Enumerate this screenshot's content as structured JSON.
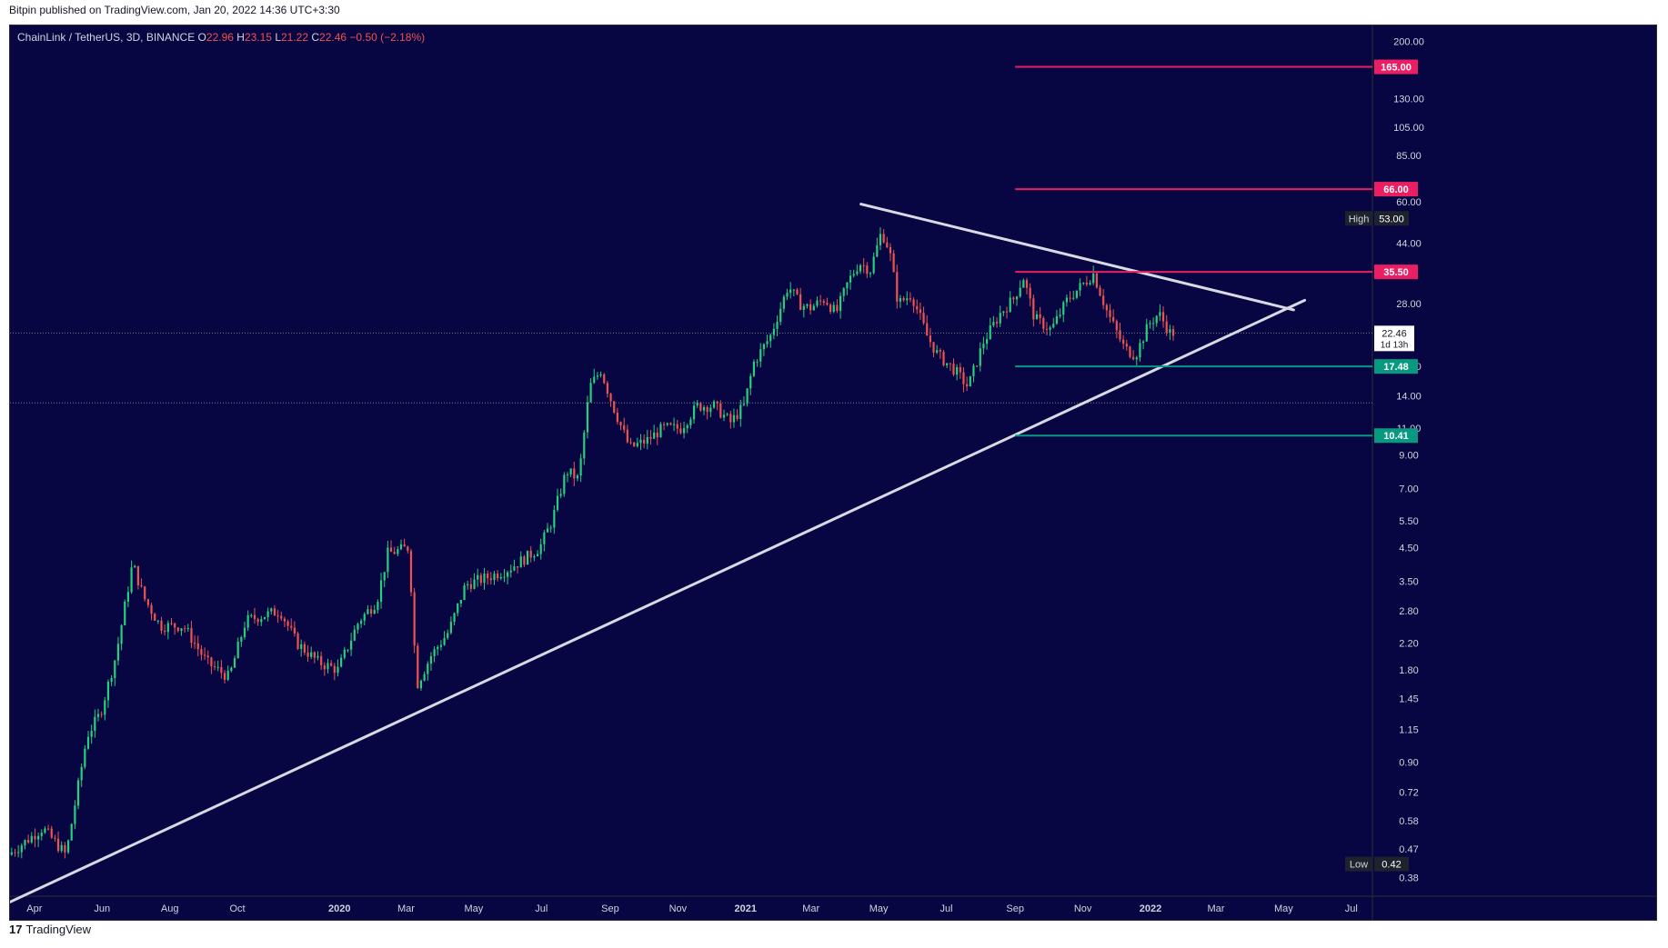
{
  "header": {
    "published": "Bitpin published on TradingView.com, Jan 20, 2022 14:36 UTC+3:30"
  },
  "legend": {
    "symbol": "ChainLink / TetherUS, 3D, BINANCE",
    "o_label": "O",
    "o": "22.96",
    "h_label": "H",
    "h": "23.15",
    "l_label": "L",
    "l": "21.22",
    "c_label": "C",
    "c": "22.46",
    "change": "−0.50 (−2.18%)"
  },
  "footer": {
    "brand": "TradingView",
    "logo_text": "17"
  },
  "colors": {
    "background": "#070642",
    "up": "#26d07c",
    "down": "#ef5350",
    "resistance": "#e91e63",
    "support": "#089981",
    "trendline": "#d9d9e3",
    "axis_text": "#d1d4dc"
  },
  "chart_data": {
    "type": "candlestick",
    "symbol": "ChainLink / TetherUS",
    "interval": "3D",
    "exchange": "BINANCE",
    "scale": "log",
    "x_range": [
      "2019-03-10",
      "2022-07-20"
    ],
    "ylim": [
      0.33,
      225
    ],
    "x_ticks": [
      {
        "date": "2019-04-01",
        "label": "Apr"
      },
      {
        "date": "2019-06-01",
        "label": "Jun"
      },
      {
        "date": "2019-08-01",
        "label": "Aug"
      },
      {
        "date": "2019-10-01",
        "label": "Oct"
      },
      {
        "date": "2020-01-01",
        "label": "2020"
      },
      {
        "date": "2020-03-01",
        "label": "Mar"
      },
      {
        "date": "2020-05-01",
        "label": "May"
      },
      {
        "date": "2020-07-01",
        "label": "Jul"
      },
      {
        "date": "2020-09-01",
        "label": "Sep"
      },
      {
        "date": "2020-11-01",
        "label": "Nov"
      },
      {
        "date": "2021-01-01",
        "label": "2021"
      },
      {
        "date": "2021-03-01",
        "label": "Mar"
      },
      {
        "date": "2021-05-01",
        "label": "May"
      },
      {
        "date": "2021-07-01",
        "label": "Jul"
      },
      {
        "date": "2021-09-01",
        "label": "Sep"
      },
      {
        "date": "2021-11-01",
        "label": "Nov"
      },
      {
        "date": "2022-01-01",
        "label": "2022"
      },
      {
        "date": "2022-03-01",
        "label": "Mar"
      },
      {
        "date": "2022-05-01",
        "label": "May"
      },
      {
        "date": "2022-07-01",
        "label": "Jul"
      }
    ],
    "y_ticks": [
      {
        "value": 200,
        "label": "200.00"
      },
      {
        "value": 130,
        "label": "130.00"
      },
      {
        "value": 105,
        "label": "105.00"
      },
      {
        "value": 85,
        "label": "85.00"
      },
      {
        "value": 60,
        "label": "60.00"
      },
      {
        "value": 44,
        "label": "44.00"
      },
      {
        "value": 28,
        "label": "28.00"
      },
      {
        "value": 17.5,
        "label": "17.50"
      },
      {
        "value": 14,
        "label": "14.00"
      },
      {
        "value": 11,
        "label": "11.00"
      },
      {
        "value": 9,
        "label": "9.00"
      },
      {
        "value": 7,
        "label": "7.00"
      },
      {
        "value": 5.5,
        "label": "5.50"
      },
      {
        "value": 4.5,
        "label": "4.50"
      },
      {
        "value": 3.5,
        "label": "3.50"
      },
      {
        "value": 2.8,
        "label": "2.80"
      },
      {
        "value": 2.2,
        "label": "2.20"
      },
      {
        "value": 1.8,
        "label": "1.80"
      },
      {
        "value": 1.45,
        "label": "1.45"
      },
      {
        "value": 1.15,
        "label": "1.15"
      },
      {
        "value": 0.9,
        "label": "0.90"
      },
      {
        "value": 0.72,
        "label": "0.72"
      },
      {
        "value": 0.58,
        "label": "0.58"
      },
      {
        "value": 0.47,
        "label": "0.47"
      },
      {
        "value": 0.38,
        "label": "0.38"
      }
    ],
    "price_anchors": [
      [
        "2019-03-10",
        0.45
      ],
      [
        "2019-04-10",
        0.55
      ],
      [
        "2019-05-01",
        0.45
      ],
      [
        "2019-05-20",
        1.1
      ],
      [
        "2019-06-01",
        1.3
      ],
      [
        "2019-06-15",
        2.0
      ],
      [
        "2019-06-30",
        4.0
      ],
      [
        "2019-07-10",
        3.1
      ],
      [
        "2019-07-25",
        2.5
      ],
      [
        "2019-08-15",
        2.5
      ],
      [
        "2019-09-05",
        1.9
      ],
      [
        "2019-09-25",
        1.7
      ],
      [
        "2019-10-10",
        2.6
      ],
      [
        "2019-10-25",
        2.7
      ],
      [
        "2019-11-10",
        2.8
      ],
      [
        "2019-11-25",
        2.2
      ],
      [
        "2019-12-15",
        1.9
      ],
      [
        "2020-01-01",
        1.8
      ],
      [
        "2020-01-20",
        2.6
      ],
      [
        "2020-02-05",
        3.0
      ],
      [
        "2020-02-15",
        4.3
      ],
      [
        "2020-03-05",
        4.5
      ],
      [
        "2020-03-12",
        1.6
      ],
      [
        "2020-03-25",
        2.0
      ],
      [
        "2020-04-10",
        2.4
      ],
      [
        "2020-04-25",
        3.4
      ],
      [
        "2020-05-15",
        3.6
      ],
      [
        "2020-06-01",
        3.8
      ],
      [
        "2020-06-20",
        4.2
      ],
      [
        "2020-07-01",
        4.5
      ],
      [
        "2020-07-12",
        5.5
      ],
      [
        "2020-07-25",
        8.0
      ],
      [
        "2020-08-05",
        7.5
      ],
      [
        "2020-08-15",
        15
      ],
      [
        "2020-08-25",
        17
      ],
      [
        "2020-09-05",
        13
      ],
      [
        "2020-09-20",
        9.5
      ],
      [
        "2020-10-05",
        10
      ],
      [
        "2020-10-20",
        11
      ],
      [
        "2020-11-05",
        11
      ],
      [
        "2020-11-20",
        13
      ],
      [
        "2020-12-05",
        13
      ],
      [
        "2020-12-20",
        11.5
      ],
      [
        "2021-01-01",
        13
      ],
      [
        "2021-01-10",
        18
      ],
      [
        "2021-01-25",
        22
      ],
      [
        "2021-02-10",
        32
      ],
      [
        "2021-02-20",
        28
      ],
      [
        "2021-03-01",
        27
      ],
      [
        "2021-03-15",
        29
      ],
      [
        "2021-03-25",
        26
      ],
      [
        "2021-04-05",
        33
      ],
      [
        "2021-04-15",
        38
      ],
      [
        "2021-04-25",
        36
      ],
      [
        "2021-05-05",
        48
      ],
      [
        "2021-05-12",
        42
      ],
      [
        "2021-05-20",
        28
      ],
      [
        "2021-06-01",
        30
      ],
      [
        "2021-06-15",
        22
      ],
      [
        "2021-06-25",
        19
      ],
      [
        "2021-07-10",
        17
      ],
      [
        "2021-07-22",
        15
      ],
      [
        "2021-08-05",
        21
      ],
      [
        "2021-08-20",
        26
      ],
      [
        "2021-09-01",
        29
      ],
      [
        "2021-09-10",
        34
      ],
      [
        "2021-09-20",
        25
      ],
      [
        "2021-10-05",
        23
      ],
      [
        "2021-10-20",
        29
      ],
      [
        "2021-11-05",
        33
      ],
      [
        "2021-11-12",
        35
      ],
      [
        "2021-11-25",
        26
      ],
      [
        "2021-12-10",
        20
      ],
      [
        "2021-12-20",
        19
      ],
      [
        "2022-01-01",
        24
      ],
      [
        "2022-01-10",
        26
      ],
      [
        "2022-01-20",
        22.5
      ]
    ],
    "lines": [
      {
        "name": "ascending-support",
        "kind": "trendline",
        "from": [
          "2019-03-05",
          0.31
        ],
        "to": [
          "2022-05-20",
          28.7
        ]
      },
      {
        "name": "descending-resistance",
        "kind": "trendline",
        "from": [
          "2021-04-15",
          59
        ],
        "to": [
          "2022-05-10",
          26.7
        ]
      },
      {
        "name": "resistance-1",
        "kind": "horizontal",
        "value": 165,
        "start": "2021-09-01",
        "label": "165.00",
        "color": "#e91e63"
      },
      {
        "name": "resistance-2",
        "kind": "horizontal",
        "value": 66,
        "start": "2021-09-01",
        "label": "66.00",
        "color": "#e91e63"
      },
      {
        "name": "resistance-3",
        "kind": "horizontal",
        "value": 35.5,
        "start": "2021-09-01",
        "label": "35.50",
        "color": "#e91e63"
      },
      {
        "name": "support-1",
        "kind": "horizontal",
        "value": 17.48,
        "start": "2021-09-01",
        "label": "17.48",
        "color": "#089981"
      },
      {
        "name": "support-2",
        "kind": "horizontal",
        "value": 10.41,
        "start": "2021-09-01",
        "label": "10.41",
        "color": "#089981"
      }
    ],
    "dotted_levels": [
      22.46,
      13.3
    ],
    "high": {
      "label": "High",
      "value": 53,
      "text": "53.00"
    },
    "low": {
      "label": "Low",
      "value": 0.42,
      "text": "0.42"
    },
    "last_price": {
      "value": 22.46,
      "text": "22.46",
      "countdown": "1d 13h"
    }
  }
}
